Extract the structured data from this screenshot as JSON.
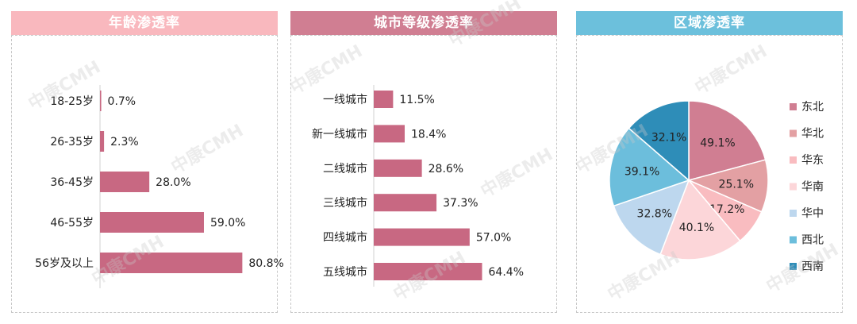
{
  "watermark": "中康CMH",
  "colors": {
    "bar": "#C86882",
    "age_header": "#F9B8BE",
    "city_header": "#D07E92",
    "region_header": "#6CC0DC"
  },
  "chart_data": [
    {
      "type": "bar",
      "orientation": "horizontal",
      "title": "年龄渗透率",
      "categories": [
        "18-25岁",
        "26-35岁",
        "36-45岁",
        "46-55岁",
        "56岁及以上"
      ],
      "values": [
        0.7,
        2.3,
        28.0,
        59.0,
        80.8
      ],
      "labels": [
        "0.7%",
        "2.3%",
        "28.0%",
        "59.0%",
        "80.8%"
      ],
      "unit": "%",
      "xlim": [
        0,
        100
      ]
    },
    {
      "type": "bar",
      "orientation": "horizontal",
      "title": "城市等级渗透率",
      "categories": [
        "一线城市",
        "新一线城市",
        "二线城市",
        "三线城市",
        "四线城市",
        "五线城市"
      ],
      "values": [
        11.5,
        18.4,
        28.6,
        37.3,
        57.0,
        64.4
      ],
      "labels": [
        "11.5%",
        "18.4%",
        "28.6%",
        "37.3%",
        "57.0%",
        "64.4%"
      ],
      "unit": "%",
      "xlim": [
        0,
        100
      ]
    },
    {
      "type": "pie",
      "title": "区域渗透率",
      "categories": [
        "东北",
        "华北",
        "华东",
        "华南",
        "华中",
        "西北",
        "西南"
      ],
      "values": [
        49.1,
        25.1,
        17.2,
        40.1,
        32.8,
        39.1,
        32.1
      ],
      "labels": [
        "49.1%",
        "25.1%",
        "17.2%",
        "40.1%",
        "32.8%",
        "39.1%",
        "32.1%"
      ],
      "colors": [
        "#D07E92",
        "#E3A0A3",
        "#F9BCC0",
        "#FCD6D9",
        "#BDD7EE",
        "#6CBEDC",
        "#2E8DB8"
      ],
      "legend": "right"
    }
  ]
}
